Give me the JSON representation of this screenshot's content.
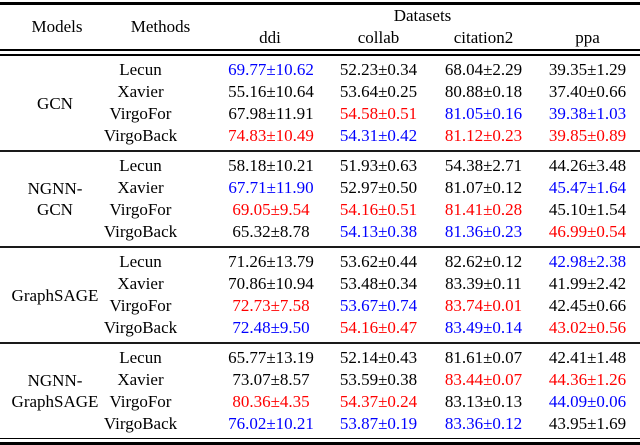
{
  "table": {
    "header": {
      "models": "Models",
      "methods": "Methods",
      "datasets": "Datasets",
      "dataset_columns": [
        "ddi",
        "collab",
        "citation2",
        "ppa"
      ]
    },
    "colors": {
      "black": "#000000",
      "blue": "#0000ff",
      "red": "#ff0000"
    },
    "groups": [
      {
        "model": "GCN",
        "model_lines": [
          "GCN"
        ],
        "rows": [
          {
            "method": "Lecun",
            "values": [
              {
                "text": "69.77±10.62",
                "color": "blue"
              },
              {
                "text": "52.23±0.34",
                "color": "black"
              },
              {
                "text": "68.04±2.29",
                "color": "black"
              },
              {
                "text": "39.35±1.29",
                "color": "black"
              }
            ]
          },
          {
            "method": "Xavier",
            "values": [
              {
                "text": "55.16±10.64",
                "color": "black"
              },
              {
                "text": "53.64±0.25",
                "color": "black"
              },
              {
                "text": "80.88±0.18",
                "color": "black"
              },
              {
                "text": "37.40±0.66",
                "color": "black"
              }
            ]
          },
          {
            "method": "VirgoFor",
            "values": [
              {
                "text": "67.98±11.91",
                "color": "black"
              },
              {
                "text": "54.58±0.51",
                "color": "red"
              },
              {
                "text": "81.05±0.16",
                "color": "blue"
              },
              {
                "text": "39.38±1.03",
                "color": "blue"
              }
            ]
          },
          {
            "method": "VirgoBack",
            "values": [
              {
                "text": "74.83±10.49",
                "color": "red"
              },
              {
                "text": "54.31±0.42",
                "color": "blue"
              },
              {
                "text": "81.12±0.23",
                "color": "red"
              },
              {
                "text": "39.85±0.89",
                "color": "red"
              }
            ]
          }
        ]
      },
      {
        "model": "NGNN-GCN",
        "model_lines": [
          "NGNN-",
          "GCN"
        ],
        "rows": [
          {
            "method": "Lecun",
            "values": [
              {
                "text": "58.18±10.21",
                "color": "black"
              },
              {
                "text": "51.93±0.63",
                "color": "black"
              },
              {
                "text": "54.38±2.71",
                "color": "black"
              },
              {
                "text": "44.26±3.48",
                "color": "black"
              }
            ]
          },
          {
            "method": "Xavier",
            "values": [
              {
                "text": "67.71±11.90",
                "color": "blue"
              },
              {
                "text": "52.97±0.50",
                "color": "black"
              },
              {
                "text": "81.07±0.12",
                "color": "black"
              },
              {
                "text": "45.47±1.64",
                "color": "blue"
              }
            ]
          },
          {
            "method": "VirgoFor",
            "values": [
              {
                "text": "69.05±9.54",
                "color": "red"
              },
              {
                "text": "54.16±0.51",
                "color": "red"
              },
              {
                "text": "81.41±0.28",
                "color": "red"
              },
              {
                "text": "45.10±1.54",
                "color": "black"
              }
            ]
          },
          {
            "method": "VirgoBack",
            "values": [
              {
                "text": "65.32±8.78",
                "color": "black"
              },
              {
                "text": "54.13±0.38",
                "color": "blue"
              },
              {
                "text": "81.36±0.23",
                "color": "blue"
              },
              {
                "text": "46.99±0.54",
                "color": "red"
              }
            ]
          }
        ]
      },
      {
        "model": "GraphSAGE",
        "model_lines": [
          "GraphSAGE"
        ],
        "rows": [
          {
            "method": "Lecun",
            "values": [
              {
                "text": "71.26±13.79",
                "color": "black"
              },
              {
                "text": "53.62±0.44",
                "color": "black"
              },
              {
                "text": "82.62±0.12",
                "color": "black"
              },
              {
                "text": "42.98±2.38",
                "color": "blue"
              }
            ]
          },
          {
            "method": "Xavier",
            "values": [
              {
                "text": "70.86±10.94",
                "color": "black"
              },
              {
                "text": "53.48±0.34",
                "color": "black"
              },
              {
                "text": "83.39±0.11",
                "color": "black"
              },
              {
                "text": "41.99±2.42",
                "color": "black"
              }
            ]
          },
          {
            "method": "VirgoFor",
            "values": [
              {
                "text": "72.73±7.58",
                "color": "red"
              },
              {
                "text": "53.67±0.74",
                "color": "blue"
              },
              {
                "text": "83.74±0.01",
                "color": "red"
              },
              {
                "text": "42.45±0.66",
                "color": "black"
              }
            ]
          },
          {
            "method": "VirgoBack",
            "values": [
              {
                "text": "72.48±9.50",
                "color": "blue"
              },
              {
                "text": "54.16±0.47",
                "color": "red"
              },
              {
                "text": "83.49±0.14",
                "color": "blue"
              },
              {
                "text": "43.02±0.56",
                "color": "red"
              }
            ]
          }
        ]
      },
      {
        "model": "NGNN-GraphSAGE",
        "model_lines": [
          "NGNN-",
          "GraphSAGE"
        ],
        "rows": [
          {
            "method": "Lecun",
            "values": [
              {
                "text": "65.77±13.19",
                "color": "black"
              },
              {
                "text": "52.14±0.43",
                "color": "black"
              },
              {
                "text": "81.61±0.07",
                "color": "black"
              },
              {
                "text": "42.41±1.48",
                "color": "black"
              }
            ]
          },
          {
            "method": "Xavier",
            "values": [
              {
                "text": "73.07±8.57",
                "color": "black"
              },
              {
                "text": "53.59±0.38",
                "color": "black"
              },
              {
                "text": "83.44±0.07",
                "color": "red"
              },
              {
                "text": "44.36±1.26",
                "color": "red"
              }
            ]
          },
          {
            "method": "VirgoFor",
            "values": [
              {
                "text": "80.36±4.35",
                "color": "red"
              },
              {
                "text": "54.37±0.24",
                "color": "red"
              },
              {
                "text": "83.13±0.13",
                "color": "black"
              },
              {
                "text": "44.09±0.06",
                "color": "blue"
              }
            ]
          },
          {
            "method": "VirgoBack",
            "values": [
              {
                "text": "76.02±10.21",
                "color": "blue"
              },
              {
                "text": "53.87±0.19",
                "color": "blue"
              },
              {
                "text": "83.36±0.12",
                "color": "blue"
              },
              {
                "text": "43.95±1.69",
                "color": "black"
              }
            ]
          }
        ]
      }
    ]
  }
}
